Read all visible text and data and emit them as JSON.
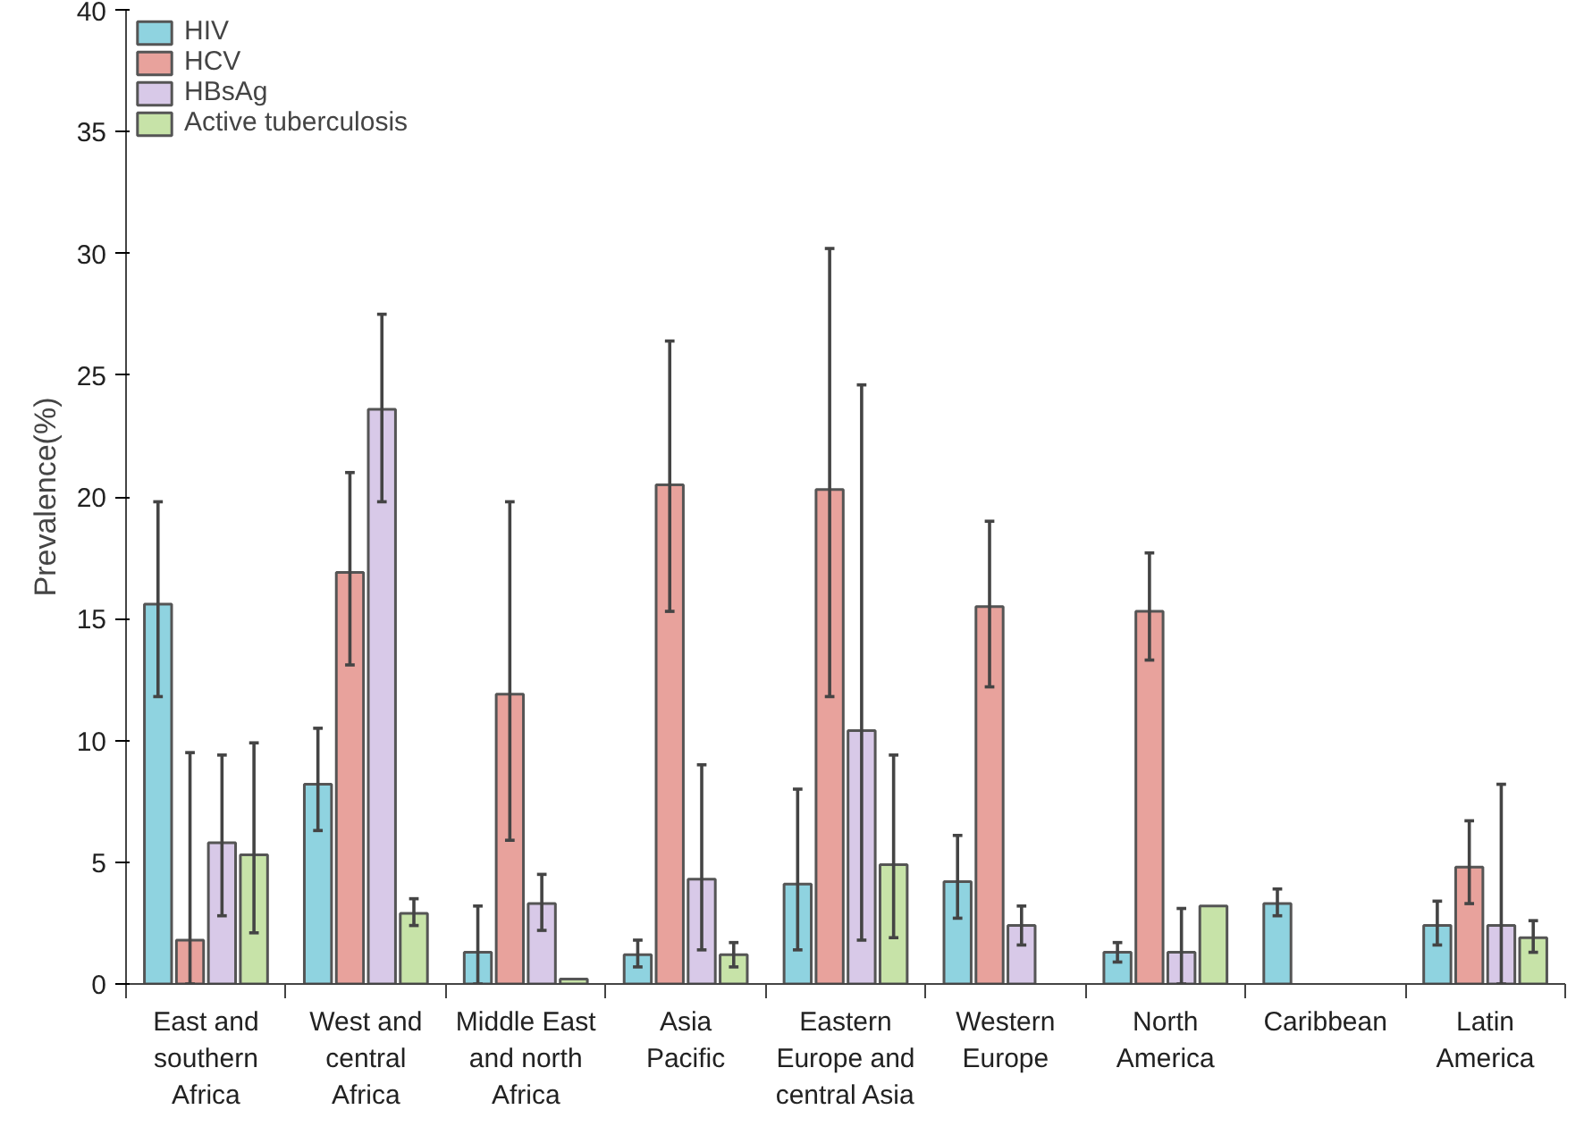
{
  "chart_data": {
    "type": "bar",
    "ylabel": "Prevalence(%)",
    "categories": [
      "East and\nsouthern\nAfrica",
      "West and\ncentral\nAfrica",
      "Middle East\nand north\nAfrica",
      "Asia\nPacific",
      "Eastern\nEurope and\ncentral Asia",
      "Western\nEurope",
      "North\nAmerica",
      "Caribbean",
      "Latin\nAmerica"
    ],
    "series": [
      {
        "name": "HIV",
        "color": "#8fd3e0",
        "values": [
          15.6,
          8.2,
          1.3,
          1.2,
          4.1,
          4.2,
          1.3,
          3.3,
          2.4
        ],
        "errors": [
          [
            11.8,
            19.8
          ],
          [
            6.3,
            10.5
          ],
          [
            0,
            3.2
          ],
          [
            0.7,
            1.8
          ],
          [
            1.4,
            8.0
          ],
          [
            2.7,
            6.1
          ],
          [
            0.9,
            1.7
          ],
          [
            2.8,
            3.9
          ],
          [
            1.6,
            3.4
          ]
        ]
      },
      {
        "name": "HCV",
        "color": "#e8a29c",
        "values": [
          1.8,
          16.9,
          11.9,
          20.5,
          20.3,
          15.5,
          15.3,
          null,
          4.8
        ],
        "errors": [
          [
            0,
            9.5
          ],
          [
            13.1,
            21.0
          ],
          [
            5.9,
            19.8
          ],
          [
            15.3,
            26.4
          ],
          [
            11.8,
            30.2
          ],
          [
            12.2,
            19.0
          ],
          [
            13.3,
            17.7
          ],
          null,
          [
            3.3,
            6.7
          ]
        ]
      },
      {
        "name": "HBsAg",
        "color": "#d8c9e8",
        "values": [
          5.8,
          23.6,
          3.3,
          4.3,
          10.4,
          2.4,
          1.3,
          null,
          2.4
        ],
        "errors": [
          [
            2.8,
            9.4
          ],
          [
            19.8,
            27.5
          ],
          [
            2.2,
            4.5
          ],
          [
            1.4,
            9.0
          ],
          [
            1.8,
            24.6
          ],
          [
            1.6,
            3.2
          ],
          [
            0,
            3.1
          ],
          null,
          [
            0,
            8.2
          ]
        ]
      },
      {
        "name": "Active tuberculosis",
        "color": "#c7e3a8",
        "values": [
          5.3,
          2.9,
          0.2,
          1.2,
          4.9,
          null,
          3.2,
          null,
          1.9
        ],
        "errors": [
          [
            2.1,
            9.9
          ],
          [
            2.4,
            3.5
          ],
          null,
          [
            0.7,
            1.7
          ],
          [
            1.9,
            9.4
          ],
          null,
          null,
          null,
          [
            1.3,
            2.6
          ]
        ]
      }
    ],
    "ylim": [
      0,
      40
    ],
    "yticks": [
      0,
      5,
      10,
      15,
      20,
      25,
      30,
      35,
      40
    ],
    "grid": false,
    "legend": "top left"
  }
}
